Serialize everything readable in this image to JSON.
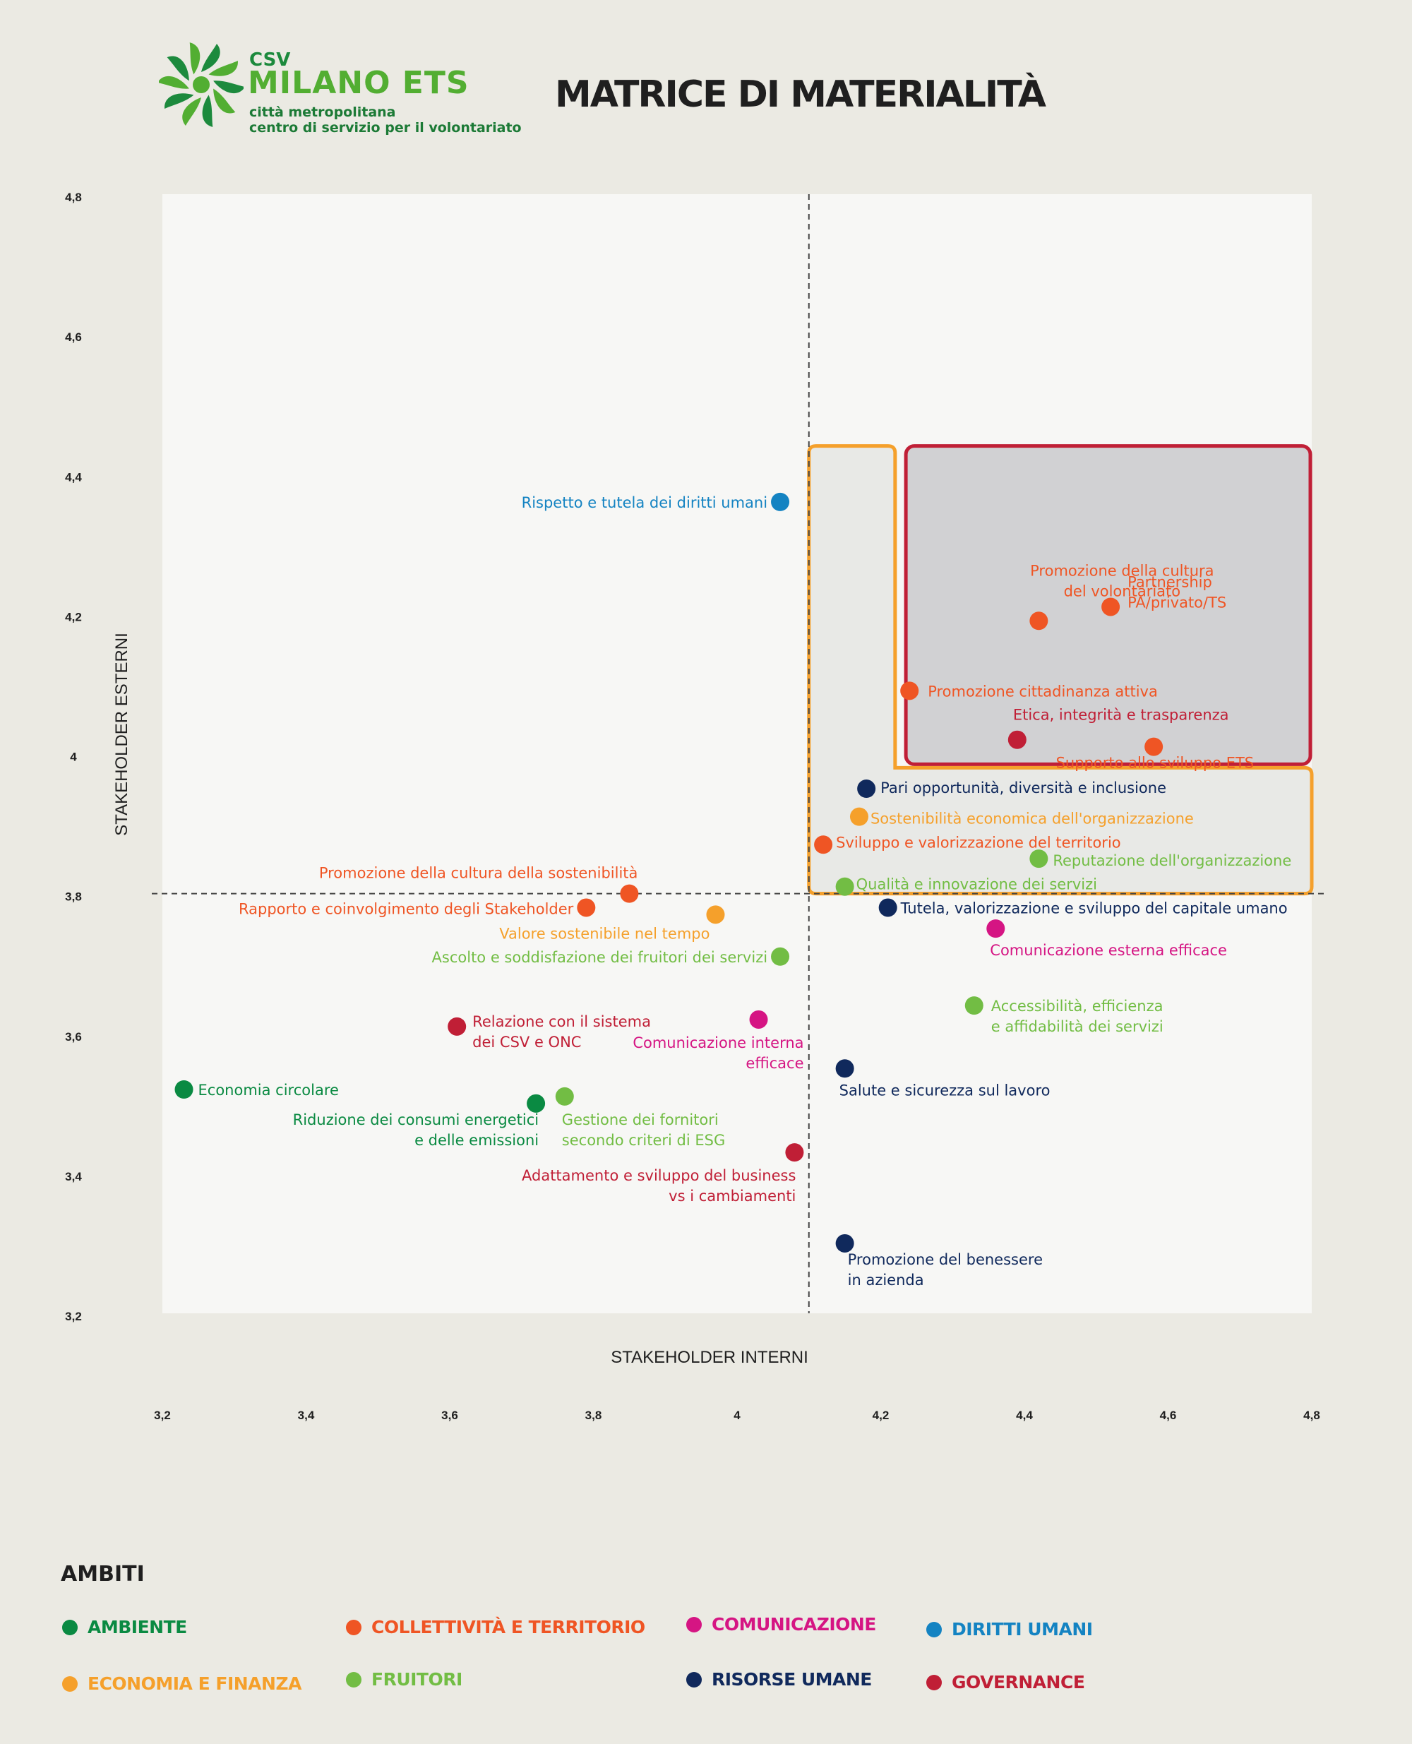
{
  "logo": {
    "top": "CSV",
    "main": "MILANO ETS",
    "line1": "città metropolitana",
    "line2": "centro di servizio per il volontariato"
  },
  "title": "MATRICE DI MATERIALITÀ",
  "colors": {
    "ambiente": "#0a8a42",
    "collettivita": "#ef5524",
    "comunicazione": "#d51583",
    "diritti": "#1483c2",
    "economia": "#f5a02b",
    "fruitori": "#72bd44",
    "risorse": "#10295c",
    "governance": "#c01f36"
  },
  "chart_data": {
    "type": "scatter",
    "title": "MATRICE DI MATERIALITÀ",
    "xlabel": "STAKEHOLDER INTERNI",
    "ylabel": "STAKEHOLDER ESTERNI",
    "xlim": [
      3.2,
      4.8
    ],
    "ylim": [
      3.2,
      4.8
    ],
    "x_ticks": [
      "3,2",
      "3,4",
      "3,6",
      "3,8",
      "4",
      "4,2",
      "4,4",
      "4,6",
      "4,8"
    ],
    "y_ticks": [
      "3,2",
      "3,4",
      "3,6",
      "3,8",
      "4",
      "4,2",
      "4,4",
      "4,6",
      "4,8"
    ],
    "threshold": {
      "x": 4.1,
      "y": 3.8
    },
    "grid": false,
    "legend": {
      "title": "AMBITI",
      "placement": "bottom",
      "items": [
        {
          "label": "AMBIENTE",
          "color": "#0a8a42"
        },
        {
          "label": "COLLETTIVITÀ E TERRITORIO",
          "color": "#ef5524"
        },
        {
          "label": "COMUNICAZIONE",
          "color": "#d51583"
        },
        {
          "label": "DIRITTI UMANI",
          "color": "#1483c2"
        },
        {
          "label": "ECONOMIA E FINANZA",
          "color": "#f5a02b"
        },
        {
          "label": "FRUITORI",
          "color": "#72bd44"
        },
        {
          "label": "RISORSE UMANE",
          "color": "#10295c"
        },
        {
          "label": "GOVERNANCE",
          "color": "#c01f36"
        }
      ]
    },
    "points": [
      {
        "x": 4.06,
        "y": 4.36,
        "color": "#1483c2",
        "label": [
          "Rispetto e tutela dei diritti umani"
        ]
      },
      {
        "x": 4.42,
        "y": 4.19,
        "color": "#ef5524",
        "label": [
          "Promozione della cultura",
          "del volontariato"
        ]
      },
      {
        "x": 4.52,
        "y": 4.21,
        "color": "#ef5524",
        "label": [
          "Partnership",
          "PA/privato/TS"
        ]
      },
      {
        "x": 4.24,
        "y": 4.09,
        "color": "#ef5524",
        "label": [
          "Promozione cittadinanza attiva"
        ]
      },
      {
        "x": 4.39,
        "y": 4.02,
        "color": "#c01f36",
        "label": [
          "Etica, integrità e trasparenza"
        ]
      },
      {
        "x": 4.58,
        "y": 4.01,
        "color": "#ef5524",
        "label": [
          "Supporto allo sviluppo ETS"
        ]
      },
      {
        "x": 4.18,
        "y": 3.95,
        "color": "#10295c",
        "label": [
          "Pari opportunità, diversità e inclusione"
        ]
      },
      {
        "x": 4.17,
        "y": 3.91,
        "color": "#f5a02b",
        "label": [
          "Sostenibilità economica dell'organizzazione"
        ]
      },
      {
        "x": 4.12,
        "y": 3.87,
        "color": "#ef5524",
        "label": [
          "Sviluppo e valorizzazione del territorio"
        ]
      },
      {
        "x": 4.42,
        "y": 3.85,
        "color": "#72bd44",
        "label": [
          "Reputazione dell'organizzazione"
        ]
      },
      {
        "x": 4.15,
        "y": 3.81,
        "color": "#72bd44",
        "label": [
          "Qualità e innovazione dei servizi"
        ]
      },
      {
        "x": 3.85,
        "y": 3.8,
        "color": "#ef5524",
        "label": [
          "Promozione della cultura della sostenibilità"
        ]
      },
      {
        "x": 3.79,
        "y": 3.78,
        "color": "#ef5524",
        "label": [
          "Rapporto e coinvolgimento degli Stakeholder"
        ]
      },
      {
        "x": 4.21,
        "y": 3.78,
        "color": "#10295c",
        "label": [
          "Tutela, valorizzazione e sviluppo del capitale umano"
        ]
      },
      {
        "x": 3.97,
        "y": 3.77,
        "color": "#f5a02b",
        "label": [
          "Valore sostenibile nel tempo"
        ]
      },
      {
        "x": 4.36,
        "y": 3.75,
        "color": "#d51583",
        "label": [
          "Comunicazione esterna efficace"
        ]
      },
      {
        "x": 4.06,
        "y": 3.71,
        "color": "#72bd44",
        "label": [
          "Ascolto e soddisfazione dei fruitori dei servizi"
        ]
      },
      {
        "x": 4.33,
        "y": 3.64,
        "color": "#72bd44",
        "label": [
          "Accessibilità, efficienza",
          "e affidabilità dei servizi"
        ]
      },
      {
        "x": 4.03,
        "y": 3.62,
        "color": "#d51583",
        "label": [
          "Comunicazione interna",
          "efficace"
        ]
      },
      {
        "x": 3.61,
        "y": 3.61,
        "color": "#c01f36",
        "label": [
          "Relazione con il sistema",
          "dei CSV e ONC"
        ]
      },
      {
        "x": 4.15,
        "y": 3.55,
        "color": "#10295c",
        "label": [
          "Salute e sicurezza sul lavoro"
        ]
      },
      {
        "x": 3.23,
        "y": 3.52,
        "color": "#0a8a42",
        "label": [
          "Economia circolare"
        ]
      },
      {
        "x": 3.76,
        "y": 3.51,
        "color": "#72bd44",
        "label": [
          "Gestione dei fornitori",
          "secondo criteri di ESG"
        ]
      },
      {
        "x": 3.72,
        "y": 3.5,
        "color": "#0a8a42",
        "label": [
          "Riduzione dei consumi energetici",
          "e delle emissioni"
        ]
      },
      {
        "x": 4.08,
        "y": 3.43,
        "color": "#c01f36",
        "label": [
          "Adattamento e sviluppo del business",
          "vs i cambiamenti"
        ]
      },
      {
        "x": 4.15,
        "y": 3.3,
        "color": "#10295c",
        "label": [
          "Promozione del benessere",
          "in azienda"
        ]
      }
    ]
  }
}
